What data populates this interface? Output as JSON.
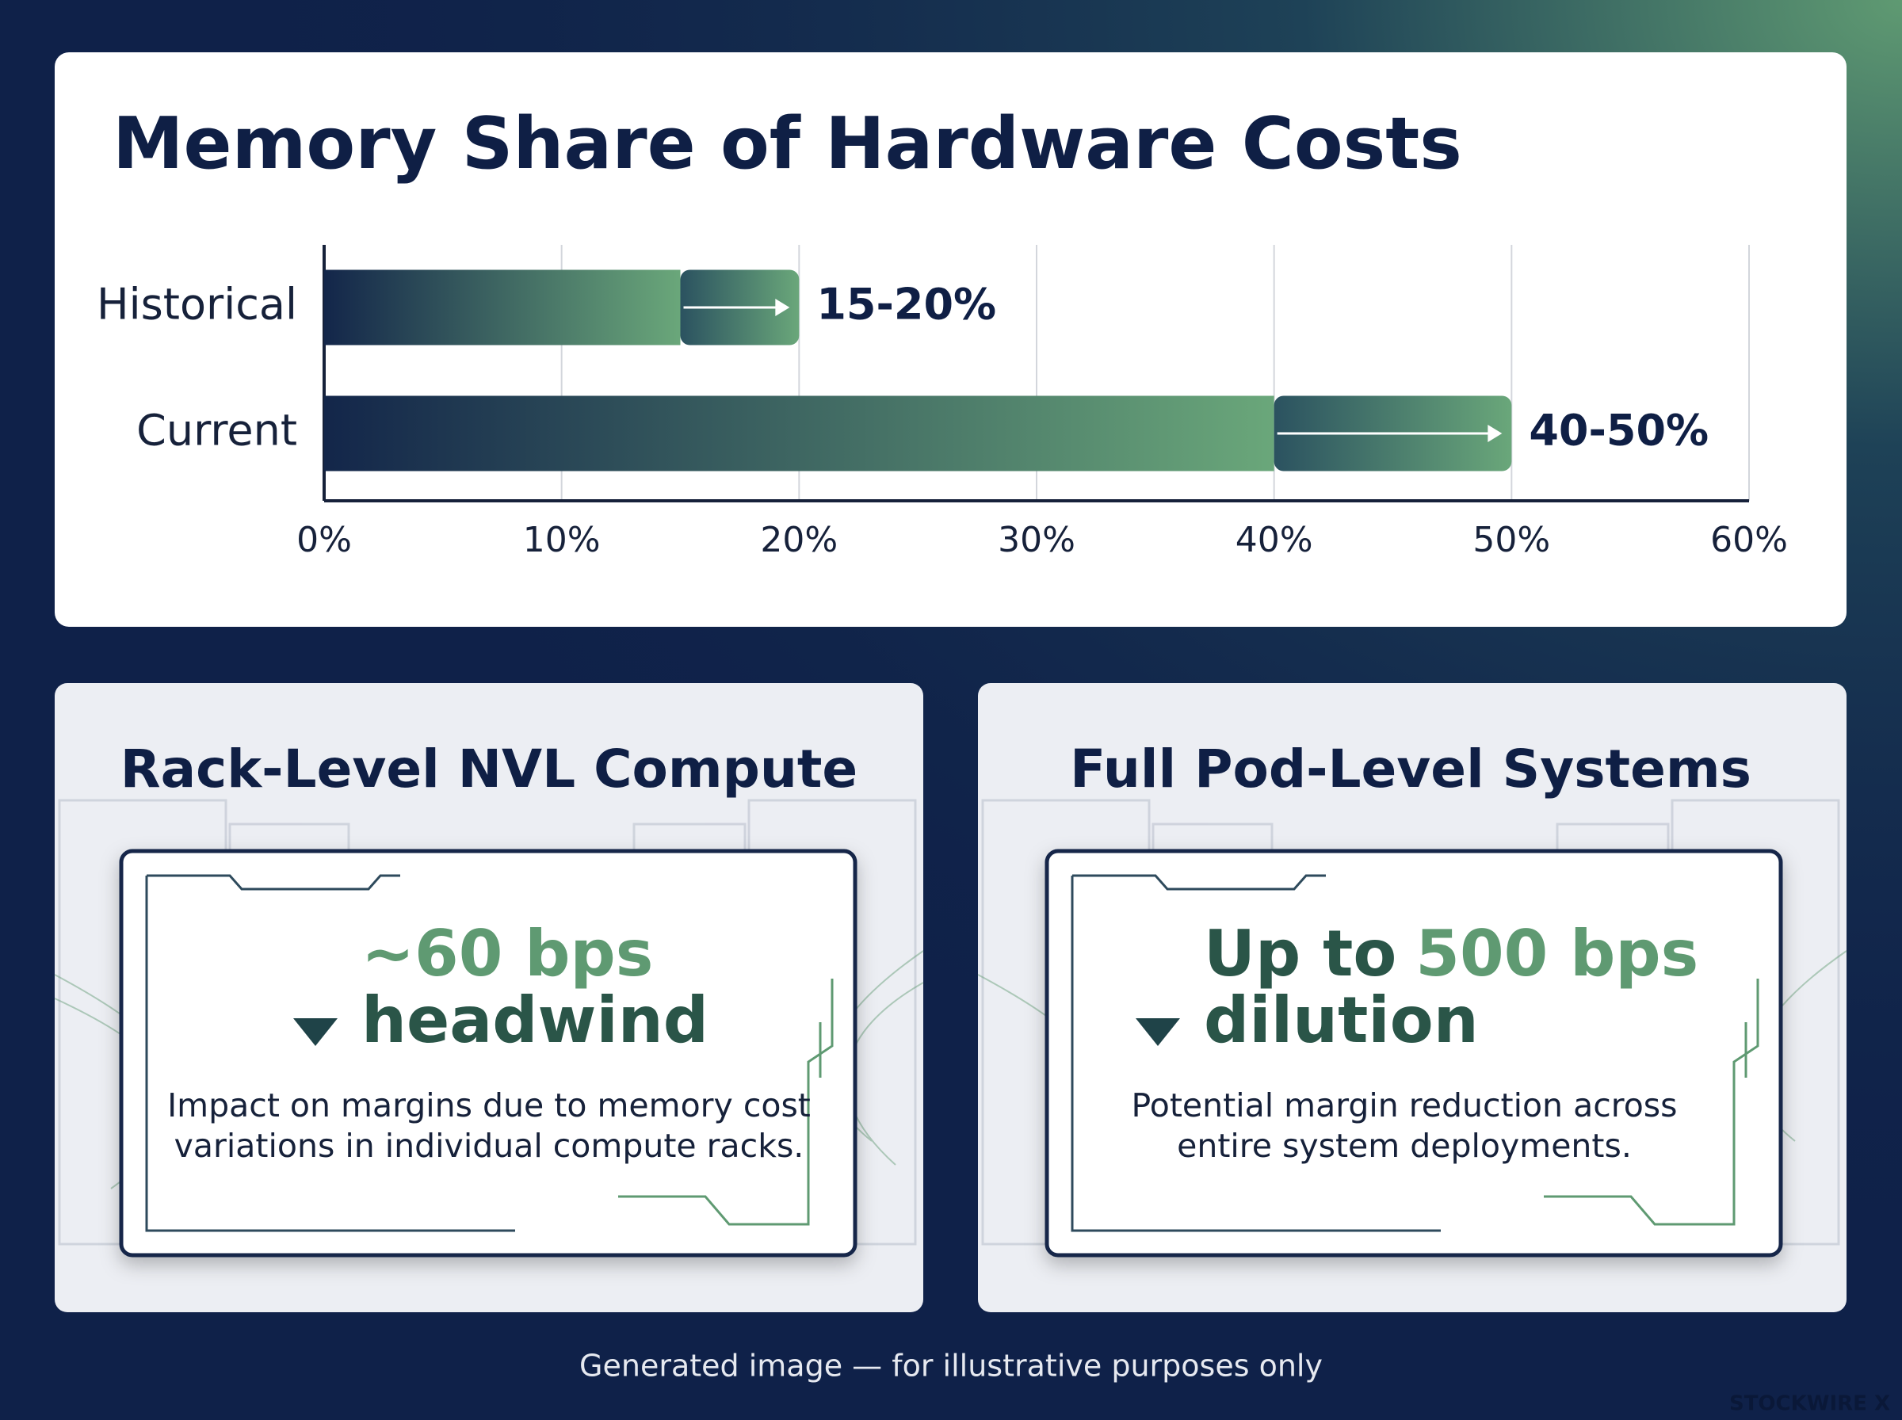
{
  "chart_data": {
    "type": "range-bar",
    "title": "Memory Share of Hardware Costs",
    "categories": [
      "Historical",
      "Current"
    ],
    "low": [
      15,
      40
    ],
    "high": [
      20,
      50
    ],
    "value_labels": [
      "15-20%",
      "40-50%"
    ],
    "xlim": [
      0,
      60
    ],
    "xticks": [
      {
        "value": 0,
        "label": "0%"
      },
      {
        "value": 10,
        "label": "10%"
      },
      {
        "value": 20,
        "label": "20%"
      },
      {
        "value": 30,
        "label": "30%"
      },
      {
        "value": 40,
        "label": "40%"
      },
      {
        "value": 50,
        "label": "50%"
      },
      {
        "value": 60,
        "label": "60%"
      }
    ],
    "grid": true,
    "color": "#6aa77a"
  },
  "cards": [
    {
      "title": "Rack-Level NVL Compute",
      "headline": [
        [
          "~60 bps"
        ],
        [
          "headwind"
        ]
      ],
      "description": [
        "Impact on margins due to memory cost",
        "variations in individual compute racks."
      ]
    },
    {
      "title": "Full Pod-Level Systems",
      "headline": [
        [
          "Up to",
          "500 bps"
        ],
        [
          "dilution"
        ]
      ],
      "description": [
        "Potential margin reduction across",
        "entire system deployments."
      ]
    }
  ],
  "footer": "Generated image — for illustrative purposes only",
  "watermark": "STOCKWIRE X"
}
